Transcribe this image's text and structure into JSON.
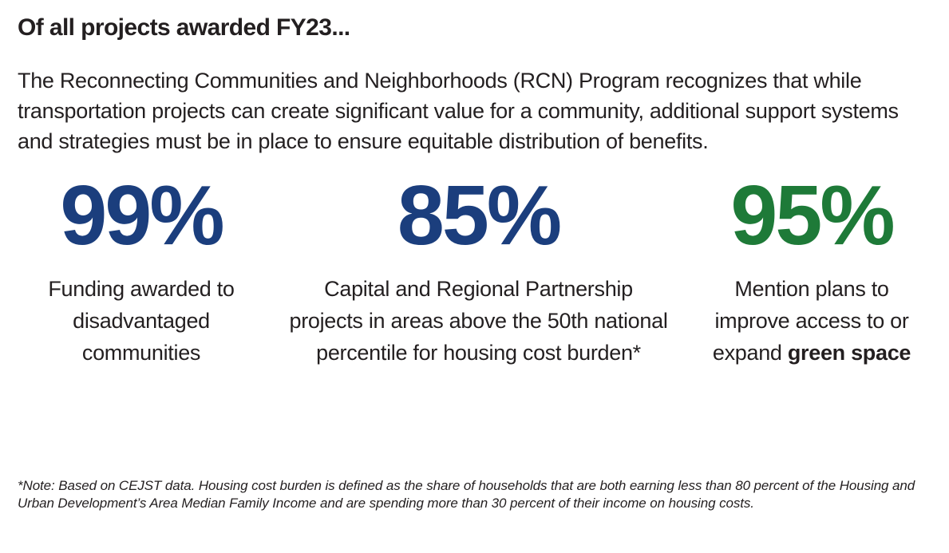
{
  "colors": {
    "text": "#231f20",
    "stat_blue": "#1b3e7d",
    "stat_green": "#1e7a38",
    "background": "#ffffff"
  },
  "header": {
    "title": "Of all projects awarded FY23..."
  },
  "intro": {
    "text": "The Reconnecting Communities and Neighborhoods (RCN) Program recognizes that while transportation projects can create significant value for a community, additional support systems and strategies must be in place to ensure equitable distribution of benefits."
  },
  "stats": [
    {
      "value": "99%",
      "color": "#1b3e7d",
      "caption": "Funding awarded to disadvantaged communities"
    },
    {
      "value": "85%",
      "color": "#1b3e7d",
      "caption": "Capital and Regional Partnership projects in areas above the 50th national percentile for housing cost burden*"
    },
    {
      "value": "95%",
      "color": "#1e7a38",
      "caption_prefix": "Mention plans to improve access to or expand ",
      "caption_bold": "green space"
    }
  ],
  "footnote": {
    "text": "*Note: Based on CEJST data. Housing cost burden is defined as the share of households that are both earning less than 80 percent of the Housing and Urban Development’s Area Median Family Income and are spending more than 30 percent of their income on housing costs."
  }
}
